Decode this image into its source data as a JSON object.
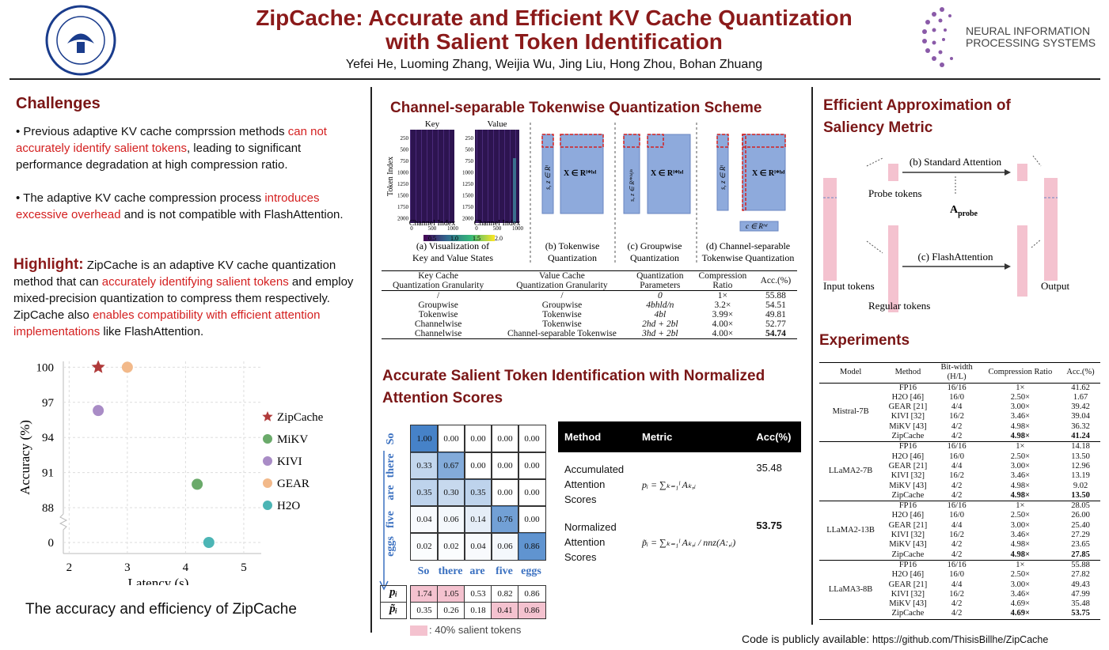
{
  "header": {
    "title_lines": [
      "ZipCache: Accurate and Efficient KV Cache Quantization",
      "with Salient Token Identification"
    ],
    "authors": "Yefei He, Luoming Zhang, Weijia Wu, Jing Liu, Hong Zhou, Bohan Zhuang",
    "logo_right": [
      "NEURAL INFORMATION",
      "PROCESSING SYSTEMS"
    ]
  },
  "challenges": {
    "title": "Challenges",
    "bullets": [
      [
        {
          "text": "Previous adaptive KV cache comprssion methods ",
          "highlight": false
        },
        {
          "text": "can not accurately identify salient tokens",
          "highlight": true
        },
        {
          "text": ", leading to significant performance degradation at high compression ratio.",
          "highlight": false
        }
      ],
      [
        {
          "text": "The adaptive KV cache compression process ",
          "highlight": false
        },
        {
          "text": "introduces excessive overhead",
          "highlight": true
        },
        {
          "text": " and is not compatible with FlashAttention.",
          "highlight": false
        }
      ]
    ],
    "highlight_label": "Highlight:",
    "highlight": [
      {
        "text": " ZipCache is an adaptive KV cache quantization method that can ",
        "highlight": false
      },
      {
        "text": "accurately identifying salient tokens",
        "highlight": true
      },
      {
        "text": " and employ mixed-precision quantization to compress them respectively. ZipCache also ",
        "highlight": false
      },
      {
        "text": "enables compatibility with efficient attention implementations",
        "highlight": true
      },
      {
        "text": " like FlashAttention.",
        "highlight": false
      }
    ],
    "caption": "The accuracy and efficiency of ZipCache"
  },
  "chart_data": {
    "type": "scatter",
    "x_label": "Latency (s)",
    "y_label": "Accuracy (%)",
    "xlim": [
      1.9,
      5.3
    ],
    "xticks": [
      2,
      3,
      4,
      5
    ],
    "ylim": [
      0,
      100.5
    ],
    "yticks": [
      0,
      88,
      91,
      94,
      97,
      100
    ],
    "y_break": [
      0,
      88
    ],
    "grid": true,
    "series": [
      {
        "name": "ZipCache",
        "color": "#b03a3a",
        "marker": "star",
        "x": [
          2.5
        ],
        "values": [
          100
        ]
      },
      {
        "name": "MiKV",
        "color": "#6aaa6a",
        "marker": "circle",
        "x": [
          4.2
        ],
        "values": [
          90
        ]
      },
      {
        "name": "KIVI",
        "color": "#a98cc6",
        "marker": "circle",
        "x": [
          2.5
        ],
        "values": [
          96.3
        ]
      },
      {
        "name": "GEAR",
        "color": "#f2b98a",
        "marker": "circle",
        "x": [
          3.0
        ],
        "values": [
          100
        ]
      },
      {
        "name": "H2O",
        "color": "#4cb5b5",
        "marker": "circle",
        "x": [
          4.4
        ],
        "values": [
          0
        ]
      }
    ]
  },
  "scheme": {
    "title": "Channel-separable Tokenwise Quantization Scheme",
    "fig_a": {
      "key": "Key",
      "value": "Value",
      "token_index": "Token Index",
      "channel_index": "Channel Index",
      "yticks": [
        "250",
        "500",
        "750",
        "1000",
        "1250",
        "1500",
        "1750",
        "2000"
      ],
      "xticks": [
        "0",
        "500",
        "1000"
      ],
      "colorbar_ticks": [
        "0.5",
        "1.0",
        "1.5",
        "2.0"
      ]
    },
    "math": {
      "sz_l": "s, z ∈ Rˡ",
      "x": "X ∈ Rˡ*ʰᵈ",
      "sz_group": "s, z ∈ Rˡ*ʰᵈ/ⁿ",
      "c": "c ∈ Rʰᵈ"
    },
    "captions": [
      [
        "(a) Visualization of",
        "Key and Value States"
      ],
      [
        "(b) Tokenwise",
        "Quantization"
      ],
      [
        "(c) Groupwise",
        "Quantization"
      ],
      [
        "(d) Channel-separable",
        "Tokenwise Quantization"
      ]
    ],
    "table": {
      "header": [
        [
          "Key Cache",
          "Quantization Granularity"
        ],
        [
          "Value Cache",
          "Quantization Granularity"
        ],
        [
          "Quantization",
          "Parameters"
        ],
        [
          "Compression",
          "Ratio"
        ],
        [
          "Acc.(%)"
        ]
      ],
      "rows": [
        [
          "/",
          "/",
          "0",
          "1×",
          "55.88"
        ],
        [
          "Groupwise",
          "Groupwise",
          "4bhld/n",
          "3.2×",
          "54.51"
        ],
        [
          "Tokenwise",
          "Tokenwise",
          "4bl",
          "3.99×",
          "49.81"
        ],
        [
          "Channelwise",
          "Tokenwise",
          "2hd + 2bl",
          "4.00×",
          "52.77"
        ],
        [
          "Channelwise",
          "Channel-separable Tokenwise",
          "3hd + 2bl",
          "4.00×",
          "54.74"
        ]
      ]
    }
  },
  "salient": {
    "title_lines": [
      "Accurate Salient Token Identification with Normalized",
      "Attention Scores"
    ],
    "tokens": [
      "So",
      "there",
      "are",
      "five",
      "eggs"
    ],
    "matrix": [
      [
        "1.00",
        "0.00",
        "0.00",
        "0.00",
        "0.00"
      ],
      [
        "0.33",
        "0.67",
        "0.00",
        "0.00",
        "0.00"
      ],
      [
        "0.35",
        "0.30",
        "0.35",
        "0.00",
        "0.00"
      ],
      [
        "0.04",
        "0.06",
        "0.14",
        "0.76",
        "0.00"
      ],
      [
        "0.02",
        "0.02",
        "0.04",
        "0.06",
        "0.86"
      ]
    ],
    "score_rows": [
      {
        "label": "pᵢ",
        "values": [
          "1.74",
          "1.05",
          "0.53",
          "0.82",
          "0.86"
        ],
        "salient": [
          true,
          true,
          false,
          false,
          false
        ]
      },
      {
        "label": "p̃ᵢ",
        "values": [
          "0.35",
          "0.26",
          "0.18",
          "0.41",
          "0.86"
        ],
        "salient": [
          false,
          false,
          false,
          true,
          true
        ]
      }
    ],
    "legend": ": 40% salient tokens",
    "table": {
      "header": [
        "Method",
        "Metric",
        "Acc(%)"
      ],
      "rows": [
        [
          [
            "Accumulated",
            "Attention",
            "Scores"
          ],
          "pᵢ = ∑ₖ₌₁ˡ Aₖ,ᵢ",
          "35.48"
        ],
        [
          [
            "Normalized",
            "Attention",
            "Scores"
          ],
          "p̃ᵢ = ∑ₖ₌₁ˡ Aₖ,ᵢ / nnz(A:,ᵢ)",
          "53.75"
        ]
      ]
    }
  },
  "approximation": {
    "title_lines": [
      "Efficient Approximation of",
      "Saliency Metric"
    ],
    "standard": "(b) Standard Attention",
    "probe_tokens": "Probe tokens",
    "a_probe": {
      "base": "A",
      "sub": "probe"
    },
    "flash": "(c) FlashAttention",
    "input_tokens": "Input tokens",
    "regular_tokens": "Regular tokens",
    "output": "Output"
  },
  "experiments": {
    "title": "Experiments",
    "header": [
      "Model",
      "Method",
      "Bit-width (H/L)",
      "Compression Ratio",
      "Acc.(%)"
    ],
    "groups": [
      {
        "model": "Mistral-7B",
        "rows": [
          [
            "FP16",
            "16/16",
            "1×",
            "41.62"
          ],
          [
            "H2O [46]",
            "16/0",
            "2.50×",
            "1.67"
          ],
          [
            "GEAR [21]",
            "4/4",
            "3.00×",
            "39.42"
          ],
          [
            "KIVI [32]",
            "16/2",
            "3.46×",
            "39.04"
          ],
          [
            "MiKV [43]",
            "4/2",
            "4.98×",
            "36.32"
          ],
          [
            "ZipCache",
            "4/2",
            "4.98×",
            "41.24"
          ]
        ]
      },
      {
        "model": "LLaMA2-7B",
        "rows": [
          [
            "FP16",
            "16/16",
            "1×",
            "14.18"
          ],
          [
            "H2O [46]",
            "16/0",
            "2.50×",
            "13.50"
          ],
          [
            "GEAR [21]",
            "4/4",
            "3.00×",
            "12.96"
          ],
          [
            "KIVI [32]",
            "16/2",
            "3.46×",
            "13.19"
          ],
          [
            "MiKV [43]",
            "4/2",
            "4.98×",
            "9.02"
          ],
          [
            "ZipCache",
            "4/2",
            "4.98×",
            "13.50"
          ]
        ]
      },
      {
        "model": "LLaMA2-13B",
        "rows": [
          [
            "FP16",
            "16/16",
            "1×",
            "28.05"
          ],
          [
            "H2O [46]",
            "16/0",
            "2.50×",
            "26.00"
          ],
          [
            "GEAR [21]",
            "4/4",
            "3.00×",
            "25.40"
          ],
          [
            "KIVI [32]",
            "16/2",
            "3.46×",
            "27.29"
          ],
          [
            "MiKV [43]",
            "4/2",
            "4.98×",
            "23.65"
          ],
          [
            "ZipCache",
            "4/2",
            "4.98×",
            "27.85"
          ]
        ]
      },
      {
        "model": "LLaMA3-8B",
        "rows": [
          [
            "FP16",
            "16/16",
            "1×",
            "55.88"
          ],
          [
            "H2O [46]",
            "16/0",
            "2.50×",
            "27.82"
          ],
          [
            "GEAR [21]",
            "4/4",
            "3.00×",
            "49.43"
          ],
          [
            "KIVI [32]",
            "16/2",
            "3.46×",
            "47.99"
          ],
          [
            "MiKV [43]",
            "4/2",
            "4.69×",
            "35.48"
          ],
          [
            "ZipCache",
            "4/2",
            "4.69×",
            "53.75"
          ]
        ]
      }
    ]
  },
  "footer": {
    "code": "Code is publicly available:",
    "url": "https://github.com/ThisisBillhe/ZipCache"
  }
}
